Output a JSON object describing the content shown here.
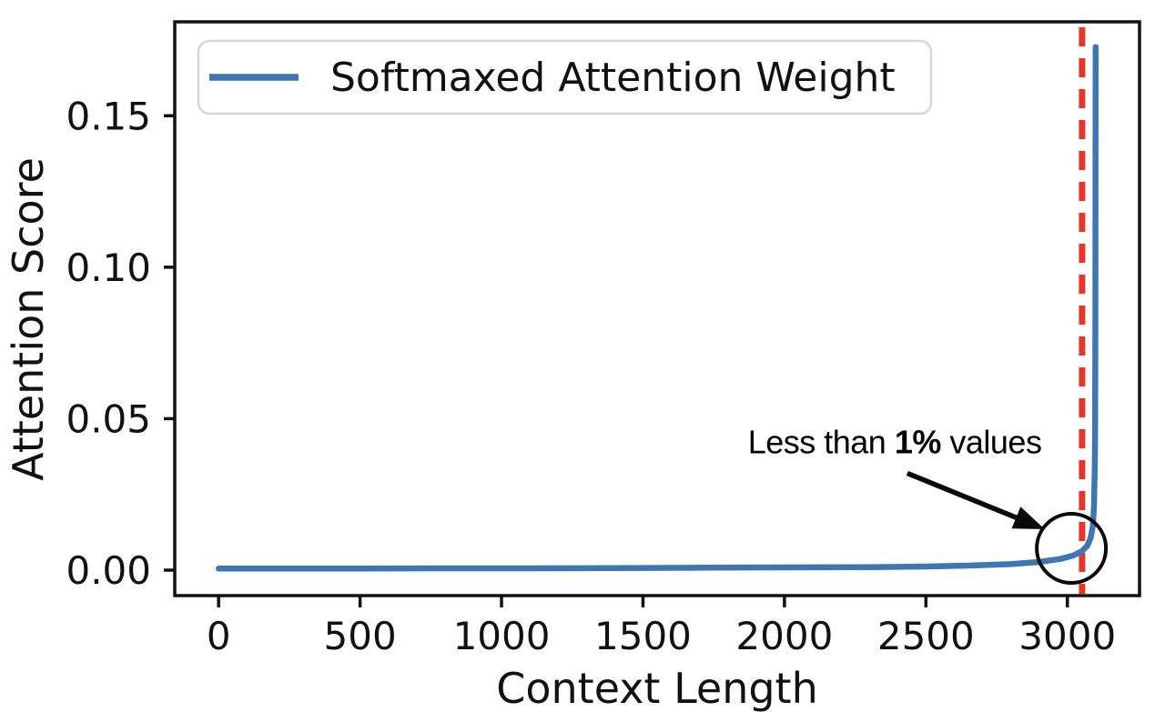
{
  "page": {
    "background": "#ffffff"
  },
  "chart_data": {
    "type": "line",
    "title": "",
    "xlabel": "Context Length",
    "ylabel": "Attention Score",
    "xlim": [
      -155,
      3255
    ],
    "ylim": [
      -0.0084,
      0.181
    ],
    "grid": false,
    "axis_color": "#111111",
    "x_ticks": {
      "values": [
        0,
        500,
        1000,
        1500,
        2000,
        2500,
        3000
      ],
      "labels": [
        "0",
        "500",
        "1000",
        "1500",
        "2000",
        "2500",
        "3000"
      ]
    },
    "y_ticks": {
      "values": [
        0.0,
        0.05,
        0.1,
        0.15
      ],
      "labels": [
        "0.00",
        "0.05",
        "0.10",
        "0.15"
      ]
    },
    "legend": {
      "position": "upper left",
      "entries": [
        {
          "label": "Softmaxed Attention Weight",
          "color": "#3d76b3"
        }
      ]
    },
    "series": [
      {
        "name": "Softmaxed Attention Weight",
        "color": "#3d76b3",
        "points": [
          [
            0,
            0.0005
          ],
          [
            200,
            0.0005
          ],
          [
            500,
            0.0005
          ],
          [
            800,
            0.0006
          ],
          [
            1100,
            0.0006
          ],
          [
            1400,
            0.0007
          ],
          [
            1700,
            0.0008
          ],
          [
            2000,
            0.0009
          ],
          [
            2300,
            0.001
          ],
          [
            2500,
            0.0012
          ],
          [
            2650,
            0.0015
          ],
          [
            2800,
            0.002
          ],
          [
            2900,
            0.0027
          ],
          [
            2975,
            0.0037
          ],
          [
            3020,
            0.0048
          ],
          [
            3050,
            0.0062
          ],
          [
            3070,
            0.008
          ],
          [
            3082,
            0.0105
          ],
          [
            3090,
            0.0145
          ],
          [
            3094,
            0.021
          ],
          [
            3097,
            0.035
          ],
          [
            3098,
            0.045
          ],
          [
            3099,
            0.08
          ],
          [
            3100,
            0.1727
          ]
        ]
      }
    ],
    "vline": {
      "x": 3052,
      "color": "#e8352a",
      "style": "dashed"
    },
    "annotations": {
      "label": {
        "text_prefix": "Less than ",
        "text_bold": "1%",
        "text_suffix": " values",
        "x": 2390,
        "y": 0.0425
      },
      "arrow": {
        "from": [
          2434,
          0.032
        ],
        "to": [
          2920,
          0.0135
        ]
      },
      "circle": {
        "x": 3014,
        "y": 0.0072,
        "radius_px": 38
      }
    }
  }
}
